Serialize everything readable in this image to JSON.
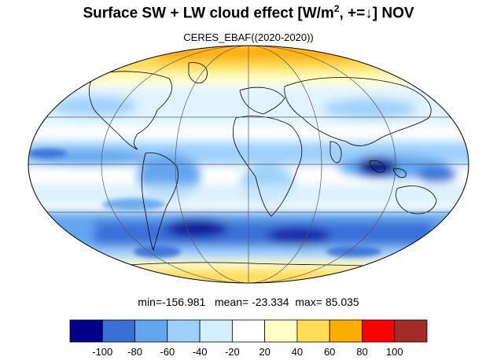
{
  "title": {
    "main": "Surface SW + LW cloud effect [W/m",
    "sup": "2",
    "tail": ", +=↓]  NOV"
  },
  "subtitle": "CERES_EBAF((2020-2020))",
  "stats": {
    "min_label": "min=",
    "min": "-156.981",
    "mean_label": "mean=",
    "mean": "-23.334",
    "max_label": "max=",
    "max": "85.035"
  },
  "colorbar": {
    "colors": [
      "#00008b",
      "#3a6fd8",
      "#62a6ee",
      "#9fd0fb",
      "#d3eefd",
      "#ffffff",
      "#fffec5",
      "#ffdd55",
      "#ffad00",
      "#ff0000",
      "#a52a2a"
    ],
    "ticks": [
      "-100",
      "-80",
      "-60",
      "-40",
      "-20",
      "20",
      "40",
      "60",
      "80",
      "100"
    ]
  },
  "map": {
    "projection": "mollweide",
    "colors": {
      "ocean_bg": "#ffffff",
      "coast": "#000000",
      "grid": "#555555"
    }
  }
}
